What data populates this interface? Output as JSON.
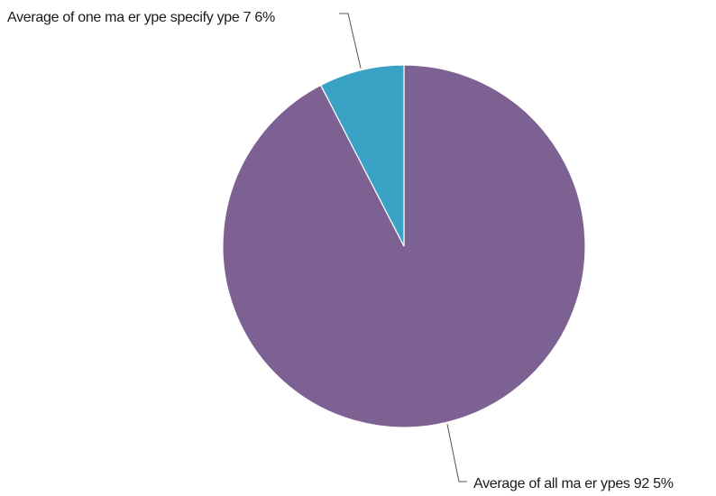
{
  "chart_data": {
    "type": "pie",
    "title": "",
    "slices": [
      {
        "label": "Average of all ma er ypes 92 5%",
        "value": 92.5,
        "color": "#7d6193"
      },
      {
        "label": "Average of one ma er ype specify ype 7 6%",
        "value": 7.6,
        "color": "#3aa2c4"
      }
    ],
    "legend": "none"
  }
}
